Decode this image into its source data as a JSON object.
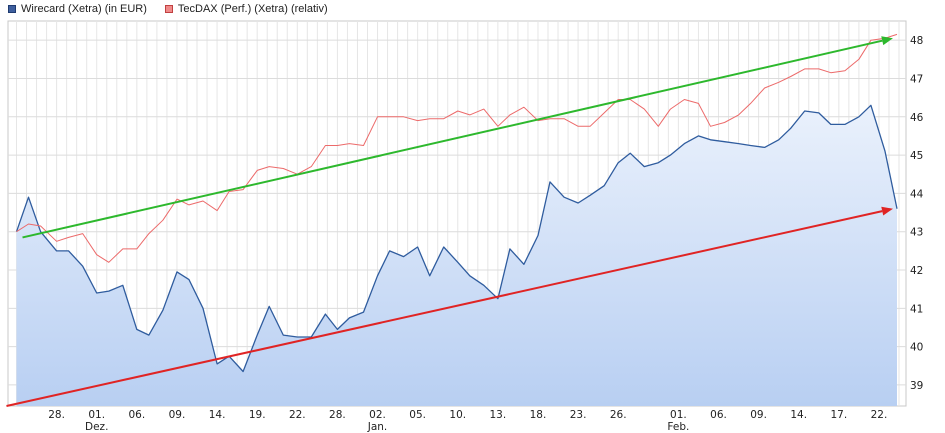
{
  "chart_data": {
    "type": "line",
    "legend": [
      {
        "name": "Wirecard (Xetra) (in EUR)",
        "color": "#3a68ad",
        "fill": "#3e5f9e"
      },
      {
        "name": "TecDAX (Perf.) (Xetra) (relativ)",
        "color": "#e85a5a",
        "fill": "#f08a8a"
      }
    ],
    "legend_position": "top-left",
    "grid": true,
    "y_axis_position": "right",
    "ylim": [
      38.45,
      48.5
    ],
    "yticks": [
      39,
      40,
      41,
      42,
      43,
      44,
      45,
      46,
      47,
      48
    ],
    "xticks": [
      {
        "i": 2,
        "label": "28."
      },
      {
        "i": 4,
        "label": "01.",
        "month": "Dez."
      },
      {
        "i": 6,
        "label": "06."
      },
      {
        "i": 8,
        "label": "09."
      },
      {
        "i": 10,
        "label": "14."
      },
      {
        "i": 12,
        "label": "19."
      },
      {
        "i": 14,
        "label": "22."
      },
      {
        "i": 16,
        "label": "28."
      },
      {
        "i": 18,
        "label": "02.",
        "month": "Jan."
      },
      {
        "i": 20,
        "label": "05."
      },
      {
        "i": 22,
        "label": "10."
      },
      {
        "i": 24,
        "label": "13."
      },
      {
        "i": 26,
        "label": "18."
      },
      {
        "i": 28,
        "label": "23."
      },
      {
        "i": 30,
        "label": "26."
      },
      {
        "i": 33,
        "label": "01.",
        "month": "Feb."
      },
      {
        "i": 35,
        "label": "06."
      },
      {
        "i": 37,
        "label": "09."
      },
      {
        "i": 39,
        "label": "14."
      },
      {
        "i": 41,
        "label": "17."
      },
      {
        "i": 43,
        "label": "22."
      }
    ],
    "x_start": 16.5,
    "x_end": 897,
    "series": [
      {
        "name": "Wirecard (Xetra) (in EUR)",
        "color": "#2f5c9e",
        "points": [
          [
            0,
            43.0
          ],
          [
            0.6,
            43.9
          ],
          [
            1.2,
            43.0
          ],
          [
            2,
            42.5
          ],
          [
            2.6,
            42.5
          ],
          [
            3.3,
            42.1
          ],
          [
            4,
            41.4
          ],
          [
            4.6,
            41.45
          ],
          [
            5.3,
            41.6
          ],
          [
            6,
            40.45
          ],
          [
            6.6,
            40.3
          ],
          [
            7.3,
            40.95
          ],
          [
            8,
            41.95
          ],
          [
            8.6,
            41.75
          ],
          [
            9.3,
            41.0
          ],
          [
            10,
            39.55
          ],
          [
            10.6,
            39.75
          ],
          [
            11.3,
            39.35
          ],
          [
            12,
            40.3
          ],
          [
            12.6,
            41.05
          ],
          [
            13.3,
            40.3
          ],
          [
            14,
            40.25
          ],
          [
            14.7,
            40.25
          ],
          [
            15.4,
            40.85
          ],
          [
            16,
            40.45
          ],
          [
            16.6,
            40.75
          ],
          [
            17.3,
            40.9
          ],
          [
            18,
            41.85
          ],
          [
            18.6,
            42.5
          ],
          [
            19.3,
            42.35
          ],
          [
            20,
            42.6
          ],
          [
            20.6,
            41.85
          ],
          [
            21.3,
            42.6
          ],
          [
            22,
            42.2
          ],
          [
            22.6,
            41.85
          ],
          [
            23.3,
            41.6
          ],
          [
            24,
            41.25
          ],
          [
            24.6,
            42.55
          ],
          [
            25.3,
            42.15
          ],
          [
            26,
            42.9
          ],
          [
            26.6,
            44.3
          ],
          [
            27.3,
            43.9
          ],
          [
            28,
            43.75
          ],
          [
            28.6,
            43.95
          ],
          [
            29.3,
            44.2
          ],
          [
            30,
            44.8
          ],
          [
            30.6,
            45.05
          ],
          [
            31.3,
            44.7
          ],
          [
            32,
            44.8
          ],
          [
            32.6,
            45.0
          ],
          [
            33.3,
            45.3
          ],
          [
            34,
            45.5
          ],
          [
            34.6,
            45.4
          ],
          [
            35.3,
            45.35
          ],
          [
            36,
            45.3
          ],
          [
            36.6,
            45.25
          ],
          [
            37.3,
            45.2
          ],
          [
            38,
            45.4
          ],
          [
            38.6,
            45.7
          ],
          [
            39.3,
            46.15
          ],
          [
            40,
            46.1
          ],
          [
            40.6,
            45.8
          ],
          [
            41.3,
            45.8
          ],
          [
            42,
            46.0
          ],
          [
            42.6,
            46.3
          ],
          [
            43.3,
            45.1
          ],
          [
            43.9,
            43.6
          ]
        ]
      },
      {
        "name": "TecDAX (Perf.) (Xetra) (relativ)",
        "color": "#ec6a6a",
        "points": [
          [
            0,
            43.0
          ],
          [
            0.6,
            43.2
          ],
          [
            1.2,
            43.15
          ],
          [
            2,
            42.75
          ],
          [
            2.6,
            42.85
          ],
          [
            3.3,
            42.95
          ],
          [
            4,
            42.4
          ],
          [
            4.6,
            42.2
          ],
          [
            5.3,
            42.55
          ],
          [
            6,
            42.55
          ],
          [
            6.6,
            42.95
          ],
          [
            7.3,
            43.3
          ],
          [
            8,
            43.85
          ],
          [
            8.6,
            43.7
          ],
          [
            9.3,
            43.8
          ],
          [
            10,
            43.55
          ],
          [
            10.6,
            44.05
          ],
          [
            11.3,
            44.1
          ],
          [
            12,
            44.6
          ],
          [
            12.6,
            44.7
          ],
          [
            13.3,
            44.65
          ],
          [
            14,
            44.5
          ],
          [
            14.7,
            44.7
          ],
          [
            15.4,
            45.25
          ],
          [
            16,
            45.25
          ],
          [
            16.6,
            45.3
          ],
          [
            17.3,
            45.25
          ],
          [
            18,
            46.0
          ],
          [
            18.6,
            46.0
          ],
          [
            19.3,
            46.0
          ],
          [
            20,
            45.9
          ],
          [
            20.6,
            45.95
          ],
          [
            21.3,
            45.95
          ],
          [
            22,
            46.15
          ],
          [
            22.6,
            46.05
          ],
          [
            23.3,
            46.2
          ],
          [
            24,
            45.75
          ],
          [
            24.6,
            46.05
          ],
          [
            25.3,
            46.25
          ],
          [
            26,
            45.9
          ],
          [
            26.6,
            45.95
          ],
          [
            27.3,
            45.95
          ],
          [
            28,
            45.75
          ],
          [
            28.6,
            45.75
          ],
          [
            29.3,
            46.1
          ],
          [
            30,
            46.45
          ],
          [
            30.6,
            46.45
          ],
          [
            31.3,
            46.2
          ],
          [
            32,
            45.75
          ],
          [
            32.6,
            46.2
          ],
          [
            33.3,
            46.45
          ],
          [
            34,
            46.35
          ],
          [
            34.6,
            45.75
          ],
          [
            35.3,
            45.85
          ],
          [
            36,
            46.05
          ],
          [
            36.6,
            46.35
          ],
          [
            37.3,
            46.75
          ],
          [
            38,
            46.9
          ],
          [
            38.6,
            47.05
          ],
          [
            39.3,
            47.25
          ],
          [
            40,
            47.25
          ],
          [
            40.6,
            47.15
          ],
          [
            41.3,
            47.2
          ],
          [
            42,
            47.5
          ],
          [
            42.6,
            48.0
          ],
          [
            43.3,
            48.05
          ],
          [
            43.9,
            48.15
          ]
        ]
      }
    ],
    "annotations": [
      {
        "type": "arrow",
        "color": "#2db82d",
        "from": [
          0.3,
          42.85
        ],
        "to": [
          43.7,
          48.05
        ]
      },
      {
        "type": "arrow",
        "color": "#e02424",
        "from": [
          -0.5,
          38.45
        ],
        "to": [
          43.7,
          43.6
        ]
      }
    ]
  }
}
